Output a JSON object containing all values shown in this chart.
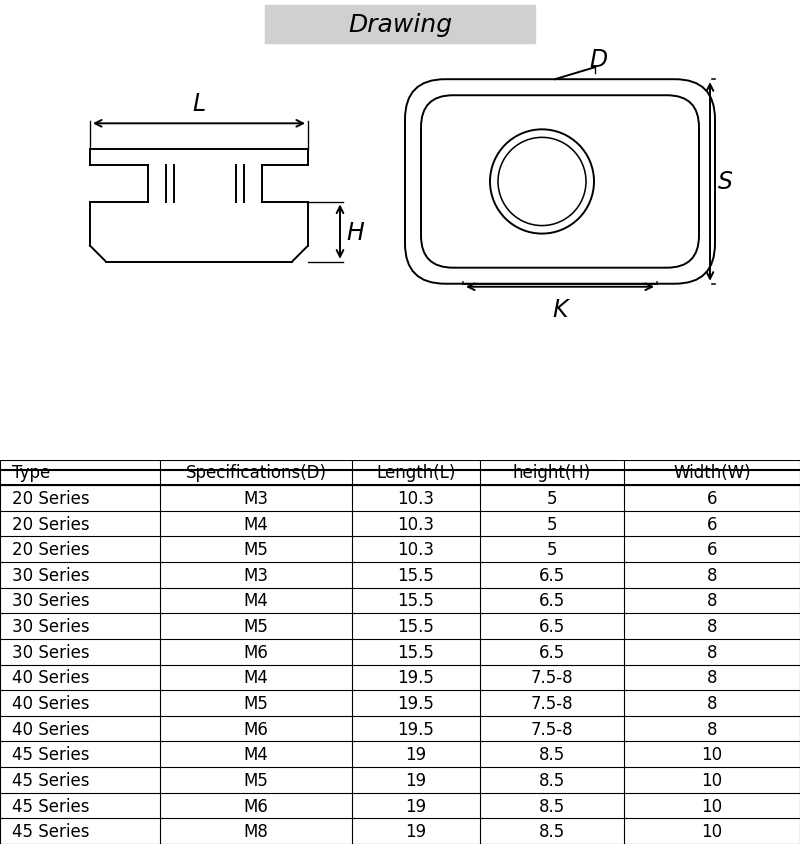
{
  "title": "Drawing",
  "title_bg": "#d0d0d0",
  "bg_color": "#ffffff",
  "table_headers": [
    "Type",
    "Specifications(D)",
    "Length(L)",
    "height(H)",
    "Width(W)"
  ],
  "table_rows": [
    [
      "20 Series",
      "M3",
      "10.3",
      "5",
      "6"
    ],
    [
      "20 Series",
      "M4",
      "10.3",
      "5",
      "6"
    ],
    [
      "20 Series",
      "M5",
      "10.3",
      "5",
      "6"
    ],
    [
      "30 Series",
      "M3",
      "15.5",
      "6.5",
      "8"
    ],
    [
      "30 Series",
      "M4",
      "15.5",
      "6.5",
      "8"
    ],
    [
      "30 Series",
      "M5",
      "15.5",
      "6.5",
      "8"
    ],
    [
      "30 Series",
      "M6",
      "15.5",
      "6.5",
      "8"
    ],
    [
      "40 Series",
      "M4",
      "19.5",
      "7.5-8",
      "8"
    ],
    [
      "40 Series",
      "M5",
      "19.5",
      "7.5-8",
      "8"
    ],
    [
      "40 Series",
      "M6",
      "19.5",
      "7.5-8",
      "8"
    ],
    [
      "45 Series",
      "M4",
      "19",
      "8.5",
      "10"
    ],
    [
      "45 Series",
      "M5",
      "19",
      "8.5",
      "10"
    ],
    [
      "45 Series",
      "M6",
      "19",
      "8.5",
      "10"
    ],
    [
      "45 Series",
      "M8",
      "19",
      "8.5",
      "10"
    ]
  ],
  "line_color": "#000000",
  "text_color": "#000000",
  "font_size_title": 18,
  "font_size_table": 12,
  "font_size_label": 15,
  "col_bounds": [
    0.0,
    0.2,
    0.44,
    0.6,
    0.78,
    1.0
  ],
  "col_aligns": [
    "left",
    "center",
    "center",
    "center",
    "center"
  ]
}
